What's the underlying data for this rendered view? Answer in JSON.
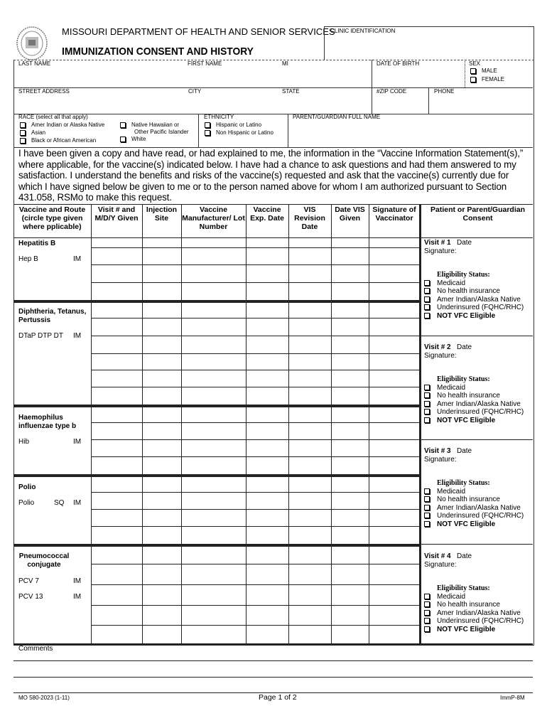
{
  "header": {
    "department": "MISSOURI DEPARTMENT OF HEALTH AND SENIOR SERVICES",
    "title": "IMMUNIZATION CONSENT AND HISTORY",
    "clinic_identification": "CLINIC IDENTIFICATION",
    "seal": "State of Missouri seal"
  },
  "fields": {
    "last_name": "LAST NAME",
    "first_name": "FIRST NAME",
    "mi": "MI",
    "date_of_birth": "DATE OF BIRTH",
    "sex": "SEX",
    "sex_options": [
      "MALE",
      "FEMALE"
    ],
    "street_address": "STREET ADDRESS",
    "city": "CITY",
    "state": "STATE",
    "zip": "#ZIP CODE",
    "phone": "PHONE",
    "race": "RACE   (select all that apply)",
    "race_options": [
      "Amer Indian or Alaska Native",
      "Asian",
      "Black or African American",
      "Native Hawaiian or",
      "Other  Pacific Islander",
      "White"
    ],
    "ethnicity": "ETHNICITY",
    "ethnicity_options": [
      "Hispanic or Latino",
      "Non Hispanic or Latino"
    ],
    "parent_guardian": "PARENT/GUARDIAN FULL NAME"
  },
  "consent_text": "I have been given a copy and have read, or had explained to me, the information in the “Vaccine Information Statement(s),” where applicable, for the vaccine(s) indicated below.  I have had a chance to ask questions and had them answered to my satisfaction.  I understand the benefits and risks of the vaccine(s) requested and ask that the vaccine(s) currently due for which I have signed below be given to me or to the person named above for whom I am authorized pursuant to Section 431.058, RSMo to make this request.",
  "table": {
    "headers": [
      "Vaccine and Route (circle type given where pplicable)",
      "Visit # and M/D/Y Given",
      "Injection Site",
      "Vaccine Manufacturer/ Lot Number",
      "Vaccine Exp. Date",
      "VIS Revision Date",
      "Date VIS Given",
      "Signature of Vaccinator",
      "Patient or Parent/Guardian Consent"
    ],
    "vaccines": [
      {
        "name": "Hepatitis B",
        "types": [
          [
            "Hep B",
            "",
            "IM"
          ]
        ]
      },
      {
        "name": "Diphtheria, Tetanus, Pertussis",
        "types": [
          [
            "DTaP DTP DT",
            "",
            "IM"
          ]
        ]
      },
      {
        "name": "Haemophilus influenzae type b",
        "types": [
          [
            "Hib",
            "",
            "IM"
          ]
        ]
      },
      {
        "name": "Polio",
        "types": [
          [
            "Polio",
            "SQ",
            "IM"
          ]
        ]
      },
      {
        "name": "Pneumococcal conjugate",
        "types": [
          [
            "PCV 7",
            "",
            "IM"
          ],
          [
            "PCV 13",
            "",
            "IM"
          ]
        ]
      }
    ],
    "visits": [
      {
        "label": "Visit # 1",
        "date": "Date",
        "signature": "Signature:"
      },
      {
        "label": "Visit # 2",
        "date": "Date",
        "signature": "Signature:"
      },
      {
        "label": "Visit # 3",
        "date": "Date",
        "signature": "Signature:"
      },
      {
        "label": "Visit # 4",
        "date": "Date",
        "signature": "Signature:"
      }
    ],
    "eligibility_title": "Eligibility Status:",
    "eligibility_options": [
      "Medicaid",
      "No health insurance",
      "Amer Indian/Alaska Native",
      "Underinsured (FQHC/RHC)",
      "NOT VFC Eligible"
    ]
  },
  "comments_label": "Comments",
  "footer": {
    "form_number": "MO 580-2023 (1-11)",
    "page": "Page 1 of 2",
    "code": "ImmP-8M"
  }
}
